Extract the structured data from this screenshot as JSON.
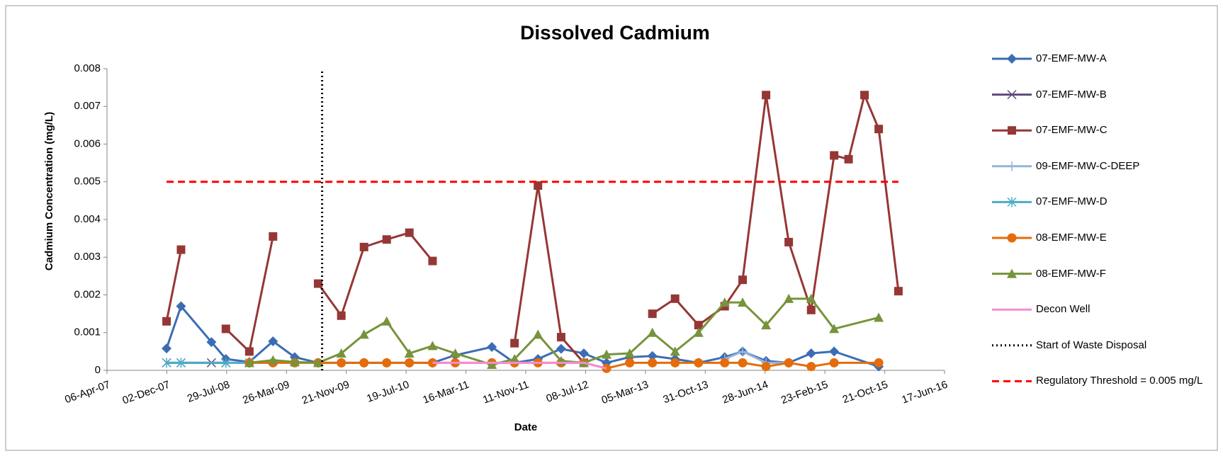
{
  "chart_data": {
    "type": "line",
    "title": "Dissolved Cadmium",
    "x_label": "Date",
    "y_label": "Cadmium Concentration (mg/L)",
    "xlim": [
      "2007-04-06",
      "2016-06-17"
    ],
    "xticks": [
      {
        "value": "2007-04-06",
        "label": "06-Apr-07"
      },
      {
        "value": "2007-12-02",
        "label": "02-Dec-07"
      },
      {
        "value": "2008-07-29",
        "label": "29-Jul-08"
      },
      {
        "value": "2009-03-26",
        "label": "26-Mar-09"
      },
      {
        "value": "2009-11-21",
        "label": "21-Nov-09"
      },
      {
        "value": "2010-07-19",
        "label": "19-Jul-10"
      },
      {
        "value": "2011-03-16",
        "label": "16-Mar-11"
      },
      {
        "value": "2011-11-11",
        "label": "11-Nov-11"
      },
      {
        "value": "2012-07-08",
        "label": "08-Jul-12"
      },
      {
        "value": "2013-03-05",
        "label": "05-Mar-13"
      },
      {
        "value": "2013-10-31",
        "label": "31-Oct-13"
      },
      {
        "value": "2014-06-28",
        "label": "28-Jun-14"
      },
      {
        "value": "2015-02-23",
        "label": "23-Feb-15"
      },
      {
        "value": "2015-10-21",
        "label": "21-Oct-15"
      },
      {
        "value": "2016-06-17",
        "label": "17-Jun-16"
      }
    ],
    "ylim": [
      0,
      0.008
    ],
    "yticks": [
      0,
      0.001,
      0.002,
      0.003,
      0.004,
      0.005,
      0.006,
      0.007,
      0.008
    ],
    "grid": false,
    "series": [
      {
        "name": "07-EMF-MW-A",
        "color": "#3c6db4",
        "marker": "diamond",
        "x": [
          "2007-12-01",
          "2008-01-28",
          "2008-05-29",
          "2008-07-26",
          "2008-10-28",
          "2009-01-31",
          "2009-04-28",
          "2009-07-31",
          "2009-11-01",
          "2010-01-31",
          "2010-05-02",
          "2010-08-01",
          "2010-11-02",
          "2011-02-01",
          "2011-06-28",
          "2011-09-27",
          "2011-12-30",
          "2012-04-01",
          "2012-07-01",
          "2012-09-30",
          "2013-01-01",
          "2013-04-02",
          "2013-07-02",
          "2013-10-04",
          "2014-01-17",
          "2014-03-30",
          "2014-07-02",
          "2014-10-01",
          "2014-12-30",
          "2015-04-01",
          "2015-09-27"
        ],
        "values": [
          0.00058,
          0.0017,
          0.00075,
          0.0003,
          0.00022,
          0.00077,
          0.00035,
          0.0002,
          0.0002,
          0.0002,
          0.0002,
          0.0002,
          0.0002,
          0.0004,
          0.00062,
          0.0002,
          0.0003,
          0.00057,
          0.00045,
          0.0002,
          0.00035,
          0.00038,
          0.0003,
          0.0002,
          0.00035,
          0.0005,
          0.00025,
          0.0002,
          0.00045,
          0.0005,
          0.0001
        ]
      },
      {
        "name": "07-EMF-MW-B",
        "color": "#604a7b",
        "marker": "x",
        "x": [
          "2007-12-01",
          "2008-01-28",
          "2008-05-29",
          "2008-07-26"
        ],
        "values": [
          0.0002,
          0.0002,
          0.0002,
          0.0002
        ]
      },
      {
        "name": "07-EMF-MW-C",
        "color": "#953735",
        "marker": "square",
        "x": [
          "2007-12-01",
          "2008-01-28",
          "2008-05-29",
          "2008-07-26",
          "2008-10-28",
          "2009-01-31",
          "2009-04-28",
          "2009-07-31",
          "2009-11-01",
          "2010-01-31",
          "2010-05-02",
          "2010-08-01",
          "2010-11-02",
          "2011-02-01",
          "2011-09-27",
          "2011-12-30",
          "2012-04-01",
          "2012-07-01",
          "2013-01-01",
          "2013-04-02",
          "2013-07-02",
          "2013-10-04",
          "2014-01-17",
          "2014-03-30",
          "2014-07-02",
          "2014-10-01",
          "2014-12-30",
          "2015-04-01",
          "2015-05-29",
          "2015-08-01",
          "2015-09-27",
          "2015-12-15"
        ],
        "values": [
          0.0013,
          0.0032,
          null,
          0.0011,
          0.0005,
          0.00355,
          null,
          0.0023,
          0.00145,
          0.00327,
          0.00347,
          0.00365,
          0.0029,
          null,
          0.00072,
          0.0049,
          0.00088,
          0.0002,
          null,
          0.0015,
          0.0019,
          0.0012,
          0.0017,
          0.0024,
          0.0073,
          0.0034,
          0.0016,
          0.0057,
          0.0056,
          0.0073,
          0.0064,
          0.0021
        ]
      },
      {
        "name": "09-EMF-MW-C-DEEP",
        "color": "#95b3d7",
        "marker": "plus",
        "x": [
          "2014-01-17",
          "2014-03-30",
          "2014-07-02",
          "2014-10-01"
        ],
        "values": [
          0.0003,
          0.0005,
          0.0002,
          0.0002
        ]
      },
      {
        "name": "07-EMF-MW-D",
        "color": "#4bacc6",
        "marker": "star",
        "x": [
          "2007-12-01",
          "2008-01-28",
          "2008-07-26",
          "2008-10-28"
        ],
        "values": [
          0.0002,
          0.0002,
          0.0002,
          0.0002
        ]
      },
      {
        "name": "08-EMF-MW-E",
        "color": "#e46c0a",
        "marker": "circle",
        "x": [
          "2008-10-28",
          "2009-01-31",
          "2009-04-28",
          "2009-07-31",
          "2009-11-01",
          "2010-01-31",
          "2010-05-02",
          "2010-08-01",
          "2010-11-02",
          "2011-02-01",
          "2011-06-28",
          "2011-09-27",
          "2011-12-30",
          "2012-04-01",
          "2012-07-01",
          "2012-09-30",
          "2013-01-01",
          "2013-04-02",
          "2013-07-02",
          "2013-10-04",
          "2014-01-17",
          "2014-03-30",
          "2014-07-02",
          "2014-10-01",
          "2014-12-30",
          "2015-04-01",
          "2015-09-27"
        ],
        "values": [
          0.0002,
          0.0002,
          0.0002,
          0.0002,
          0.0002,
          0.0002,
          0.0002,
          0.0002,
          0.0002,
          0.0002,
          0.0002,
          0.0002,
          0.0002,
          0.0002,
          0.0002,
          5e-05,
          0.0002,
          0.0002,
          0.0002,
          0.0002,
          0.0002,
          0.0002,
          0.0001,
          0.0002,
          0.0001,
          0.0002,
          0.0002
        ]
      },
      {
        "name": "08-EMF-MW-F",
        "color": "#77933c",
        "marker": "triangle",
        "x": [
          "2008-10-28",
          "2009-01-31",
          "2009-04-28",
          "2009-07-31",
          "2009-11-01",
          "2010-01-31",
          "2010-05-02",
          "2010-08-01",
          "2010-11-02",
          "2011-02-01",
          "2011-06-28",
          "2011-09-27",
          "2011-12-30",
          "2012-04-01",
          "2012-07-01",
          "2012-09-30",
          "2013-01-01",
          "2013-04-02",
          "2013-07-02",
          "2013-10-04",
          "2014-01-17",
          "2014-03-30",
          "2014-07-02",
          "2014-10-01",
          "2014-12-30",
          "2015-04-01",
          "2015-09-27"
        ],
        "values": [
          0.0002,
          0.00027,
          0.00022,
          0.0002,
          0.00045,
          0.00095,
          0.0013,
          0.00045,
          0.00065,
          0.00045,
          0.00015,
          0.0003,
          0.00095,
          0.00025,
          0.0002,
          0.00042,
          0.00045,
          0.001,
          0.0005,
          0.001,
          0.0018,
          0.0018,
          0.0012,
          0.0019,
          0.0019,
          0.0011,
          0.0014
        ]
      },
      {
        "name": "Decon Well",
        "color": "#f68bd6",
        "marker": "none",
        "x": [
          "2010-11-02",
          "2011-02-01",
          "2011-06-28",
          "2011-09-27",
          "2011-12-30",
          "2012-04-01",
          "2012-07-01",
          "2012-09-30"
        ],
        "values": [
          0.0002,
          0.0002,
          0.0002,
          0.0002,
          0.0002,
          0.0002,
          0.0002,
          5e-05
        ]
      },
      {
        "name": "Start of Waste Disposal",
        "color": "#000000",
        "marker": "none",
        "dash": "dotted",
        "x": [
          "2009-08-16",
          "2009-08-16"
        ],
        "values": [
          0,
          0.008
        ]
      },
      {
        "name": "Regulatory Threshold = 0.005 mg/L",
        "color": "#ff0000",
        "marker": "none",
        "dash": "dashed",
        "x": [
          "2007-12-01",
          "2015-12-15"
        ],
        "values": [
          0.005,
          0.005
        ]
      }
    ]
  }
}
